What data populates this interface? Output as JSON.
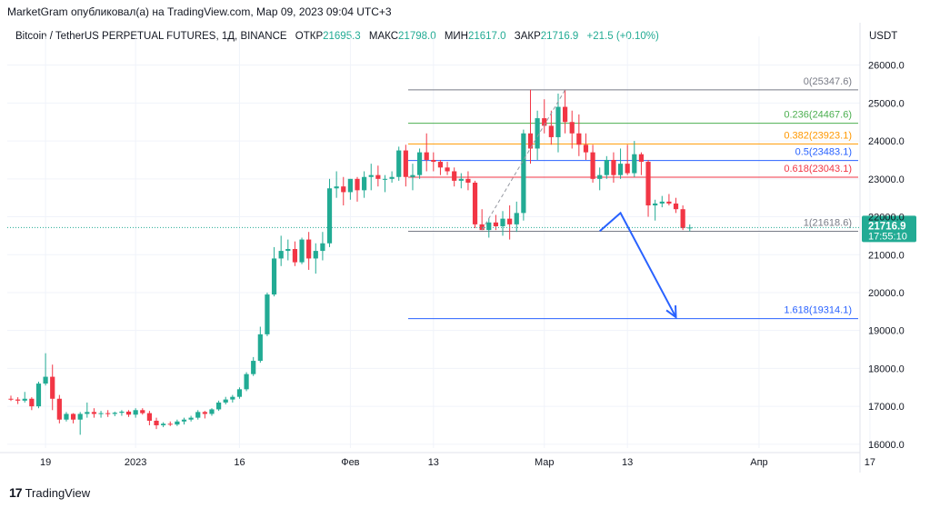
{
  "header": {
    "published": "MarketGram опубликовал(а) на TradingView.com, Мар 09, 2023 09:04 UTC+3"
  },
  "symbol": {
    "title": "Bitcoin / TetherUS PERPETUAL FUTURES, 1Д, BINANCE",
    "open_label": "ОТКР",
    "open_value": "21695.3",
    "high_label": "МАКС",
    "high_value": "21798.0",
    "low_label": "МИН",
    "low_value": "21617.0",
    "close_label": "ЗАКР",
    "close_value": "21716.9",
    "change": "+21.5 (+0.10%)"
  },
  "currency": "USDT",
  "footer": {
    "logo": "17",
    "brand": "TradingView"
  },
  "colors": {
    "up": "#22ab94",
    "down": "#f23645",
    "arrow": "#2962ff",
    "grid": "#f0f3fa"
  },
  "chart_data": {
    "type": "candlestick",
    "ylim": [
      15900,
      26400
    ],
    "y_ticks": [
      "16000.0",
      "17000.0",
      "18000.0",
      "19000.0",
      "20000.0",
      "21000.0",
      "22000.0",
      "23000.0",
      "24000.0",
      "25000.0",
      "26000.0"
    ],
    "x_labels": [
      {
        "label": "19",
        "date": "2022-12-19"
      },
      {
        "label": "2023",
        "date": "2023-01-01"
      },
      {
        "label": "16",
        "date": "2023-01-16"
      },
      {
        "label": "Фев",
        "date": "2023-02-01"
      },
      {
        "label": "13",
        "date": "2023-02-13"
      },
      {
        "label": "Мар",
        "date": "2023-03-01"
      },
      {
        "label": "13",
        "date": "2023-03-13"
      },
      {
        "label": "Апр",
        "date": "2023-04-01"
      },
      {
        "label": "17",
        "date": "2023-04-17"
      }
    ],
    "start_date": "2022-12-14",
    "candles": [
      {
        "o": 17200,
        "h": 17280,
        "l": 17140,
        "c": 17180
      },
      {
        "o": 17180,
        "h": 17240,
        "l": 17060,
        "c": 17150
      },
      {
        "o": 17150,
        "h": 17380,
        "l": 17100,
        "c": 17200
      },
      {
        "o": 17200,
        "h": 17240,
        "l": 16900,
        "c": 17000
      },
      {
        "o": 17000,
        "h": 17650,
        "l": 16950,
        "c": 17600
      },
      {
        "o": 17600,
        "h": 18400,
        "l": 17550,
        "c": 17780
      },
      {
        "o": 17780,
        "h": 18100,
        "l": 16900,
        "c": 17200
      },
      {
        "o": 17200,
        "h": 17300,
        "l": 16550,
        "c": 16650
      },
      {
        "o": 16650,
        "h": 16850,
        "l": 16600,
        "c": 16800
      },
      {
        "o": 16800,
        "h": 16820,
        "l": 16550,
        "c": 16650
      },
      {
        "o": 16650,
        "h": 16850,
        "l": 16250,
        "c": 16800
      },
      {
        "o": 16800,
        "h": 17100,
        "l": 16700,
        "c": 16850
      },
      {
        "o": 16850,
        "h": 16950,
        "l": 16700,
        "c": 16800
      },
      {
        "o": 16800,
        "h": 16880,
        "l": 16700,
        "c": 16820
      },
      {
        "o": 16820,
        "h": 16900,
        "l": 16720,
        "c": 16800
      },
      {
        "o": 16800,
        "h": 16860,
        "l": 16740,
        "c": 16830
      },
      {
        "o": 16830,
        "h": 16900,
        "l": 16750,
        "c": 16860
      },
      {
        "o": 16860,
        "h": 16900,
        "l": 16720,
        "c": 16780
      },
      {
        "o": 16780,
        "h": 16950,
        "l": 16700,
        "c": 16900
      },
      {
        "o": 16900,
        "h": 16950,
        "l": 16780,
        "c": 16820
      },
      {
        "o": 16820,
        "h": 16880,
        "l": 16500,
        "c": 16620
      },
      {
        "o": 16620,
        "h": 16700,
        "l": 16400,
        "c": 16500
      },
      {
        "o": 16500,
        "h": 16580,
        "l": 16450,
        "c": 16540
      },
      {
        "o": 16540,
        "h": 16600,
        "l": 16480,
        "c": 16520
      },
      {
        "o": 16520,
        "h": 16650,
        "l": 16480,
        "c": 16600
      },
      {
        "o": 16600,
        "h": 16700,
        "l": 16520,
        "c": 16650
      },
      {
        "o": 16650,
        "h": 16750,
        "l": 16600,
        "c": 16700
      },
      {
        "o": 16700,
        "h": 16900,
        "l": 16650,
        "c": 16850
      },
      {
        "o": 16850,
        "h": 16880,
        "l": 16680,
        "c": 16800
      },
      {
        "o": 16800,
        "h": 16950,
        "l": 16750,
        "c": 16920
      },
      {
        "o": 16920,
        "h": 17150,
        "l": 16880,
        "c": 17100
      },
      {
        "o": 17100,
        "h": 17250,
        "l": 17050,
        "c": 17180
      },
      {
        "o": 17180,
        "h": 17300,
        "l": 17100,
        "c": 17250
      },
      {
        "o": 17250,
        "h": 17500,
        "l": 17200,
        "c": 17450
      },
      {
        "o": 17450,
        "h": 17900,
        "l": 17400,
        "c": 17850
      },
      {
        "o": 17850,
        "h": 18300,
        "l": 17800,
        "c": 18200
      },
      {
        "o": 18200,
        "h": 19100,
        "l": 18150,
        "c": 18900
      },
      {
        "o": 18900,
        "h": 20000,
        "l": 18850,
        "c": 19950
      },
      {
        "o": 19950,
        "h": 21200,
        "l": 19900,
        "c": 20900
      },
      {
        "o": 20900,
        "h": 21500,
        "l": 20700,
        "c": 21100
      },
      {
        "o": 21100,
        "h": 21400,
        "l": 20850,
        "c": 21150
      },
      {
        "o": 21150,
        "h": 21350,
        "l": 20700,
        "c": 20800
      },
      {
        "o": 20800,
        "h": 21450,
        "l": 20750,
        "c": 21400
      },
      {
        "o": 21400,
        "h": 21600,
        "l": 20600,
        "c": 20900
      },
      {
        "o": 20900,
        "h": 21300,
        "l": 20500,
        "c": 21100
      },
      {
        "o": 21100,
        "h": 21600,
        "l": 20850,
        "c": 21300
      },
      {
        "o": 21300,
        "h": 23000,
        "l": 21200,
        "c": 22750
      },
      {
        "o": 22750,
        "h": 23200,
        "l": 22500,
        "c": 22800
      },
      {
        "o": 22800,
        "h": 23050,
        "l": 22300,
        "c": 22650
      },
      {
        "o": 22650,
        "h": 23000,
        "l": 22450,
        "c": 23000
      },
      {
        "o": 23000,
        "h": 23050,
        "l": 22400,
        "c": 22700
      },
      {
        "o": 22700,
        "h": 23200,
        "l": 22500,
        "c": 23050
      },
      {
        "o": 23050,
        "h": 23400,
        "l": 22700,
        "c": 23100
      },
      {
        "o": 23100,
        "h": 23350,
        "l": 22800,
        "c": 23000
      },
      {
        "o": 23000,
        "h": 23100,
        "l": 22650,
        "c": 23000
      },
      {
        "o": 23000,
        "h": 23200,
        "l": 22900,
        "c": 23050
      },
      {
        "o": 23050,
        "h": 23850,
        "l": 22950,
        "c": 23750
      },
      {
        "o": 23750,
        "h": 23900,
        "l": 22800,
        "c": 23050
      },
      {
        "o": 23050,
        "h": 23400,
        "l": 22700,
        "c": 23100
      },
      {
        "o": 23100,
        "h": 23800,
        "l": 23000,
        "c": 23700
      },
      {
        "o": 23700,
        "h": 24200,
        "l": 23200,
        "c": 23500
      },
      {
        "o": 23500,
        "h": 23700,
        "l": 23200,
        "c": 23450
      },
      {
        "o": 23450,
        "h": 23500,
        "l": 23100,
        "c": 23300
      },
      {
        "o": 23300,
        "h": 23450,
        "l": 23100,
        "c": 23200
      },
      {
        "o": 23200,
        "h": 23300,
        "l": 22800,
        "c": 22950
      },
      {
        "o": 22950,
        "h": 23150,
        "l": 22750,
        "c": 23000
      },
      {
        "o": 23000,
        "h": 23200,
        "l": 22700,
        "c": 22900
      },
      {
        "o": 22900,
        "h": 22950,
        "l": 21700,
        "c": 21800
      },
      {
        "o": 21800,
        "h": 22200,
        "l": 21650,
        "c": 21650
      },
      {
        "o": 21650,
        "h": 21950,
        "l": 21450,
        "c": 21850
      },
      {
        "o": 21850,
        "h": 22050,
        "l": 21650,
        "c": 21750
      },
      {
        "o": 21750,
        "h": 22150,
        "l": 21500,
        "c": 21950
      },
      {
        "o": 21950,
        "h": 22300,
        "l": 21400,
        "c": 21800
      },
      {
        "o": 21800,
        "h": 22400,
        "l": 21600,
        "c": 22100
      },
      {
        "o": 22100,
        "h": 24300,
        "l": 21900,
        "c": 24200
      },
      {
        "o": 24200,
        "h": 25350,
        "l": 23400,
        "c": 23800
      },
      {
        "o": 23800,
        "h": 24800,
        "l": 23500,
        "c": 24600
      },
      {
        "o": 24600,
        "h": 25100,
        "l": 24200,
        "c": 24400
      },
      {
        "o": 24400,
        "h": 24800,
        "l": 23900,
        "c": 24100
      },
      {
        "o": 24100,
        "h": 25250,
        "l": 23700,
        "c": 24900
      },
      {
        "o": 24900,
        "h": 25347,
        "l": 24200,
        "c": 24500
      },
      {
        "o": 24500,
        "h": 24800,
        "l": 23800,
        "c": 24200
      },
      {
        "o": 24200,
        "h": 24700,
        "l": 23600,
        "c": 23900
      },
      {
        "o": 23900,
        "h": 24200,
        "l": 23500,
        "c": 23700
      },
      {
        "o": 23700,
        "h": 23900,
        "l": 22900,
        "c": 23000
      },
      {
        "o": 23000,
        "h": 23300,
        "l": 22700,
        "c": 23100
      },
      {
        "o": 23100,
        "h": 23600,
        "l": 23000,
        "c": 23500
      },
      {
        "o": 23500,
        "h": 23700,
        "l": 22900,
        "c": 23100
      },
      {
        "o": 23100,
        "h": 23800,
        "l": 23000,
        "c": 23400
      },
      {
        "o": 23400,
        "h": 23900,
        "l": 23100,
        "c": 23150
      },
      {
        "o": 23150,
        "h": 24000,
        "l": 23050,
        "c": 23650
      },
      {
        "o": 23650,
        "h": 23700,
        "l": 23100,
        "c": 23450
      },
      {
        "o": 23450,
        "h": 23500,
        "l": 22000,
        "c": 22300
      },
      {
        "o": 22300,
        "h": 22450,
        "l": 21900,
        "c": 22350
      },
      {
        "o": 22350,
        "h": 22550,
        "l": 22250,
        "c": 22400
      },
      {
        "o": 22400,
        "h": 22600,
        "l": 22300,
        "c": 22350
      },
      {
        "o": 22350,
        "h": 22500,
        "l": 22100,
        "c": 22200
      },
      {
        "o": 22200,
        "h": 22300,
        "l": 21650,
        "c": 21700
      },
      {
        "o": 21695.3,
        "h": 21798.0,
        "l": 21617.0,
        "c": 21716.9
      }
    ],
    "trend_line": [
      {
        "candle": 68,
        "price": 21650
      },
      {
        "candle": 80,
        "price": 25347
      }
    ],
    "fib_levels": [
      {
        "ratio": "0",
        "price": 25347.6,
        "label": "0(25347.6)",
        "color": "#787b86"
      },
      {
        "ratio": "0.236",
        "price": 24467.6,
        "label": "0.236(24467.6)",
        "color": "#4caf50"
      },
      {
        "ratio": "0.382",
        "price": 23923.1,
        "label": "0.382(23923.1)",
        "color": "#ff9800"
      },
      {
        "ratio": "0.5",
        "price": 23483.1,
        "label": "0.5(23483.1)",
        "color": "#2962ff"
      },
      {
        "ratio": "0.618",
        "price": 23043.1,
        "label": "0.618(23043.1)",
        "color": "#f23645"
      },
      {
        "ratio": "1",
        "price": 21618.6,
        "label": "1(21618.6)",
        "color": "#787b86"
      },
      {
        "ratio": "1.618",
        "price": 19314.1,
        "label": "1.618(19314.1)",
        "color": "#2962ff"
      }
    ],
    "projection_arrow": [
      {
        "date": "2023-03-09",
        "price": 21620
      },
      {
        "date": "2023-03-12",
        "price": 22100
      },
      {
        "date": "2023-03-20",
        "price": 19350
      }
    ],
    "price_label": {
      "price": 21716.9,
      "value": "21716.9",
      "countdown": "17:55:10",
      "color": "#22ab94"
    }
  }
}
